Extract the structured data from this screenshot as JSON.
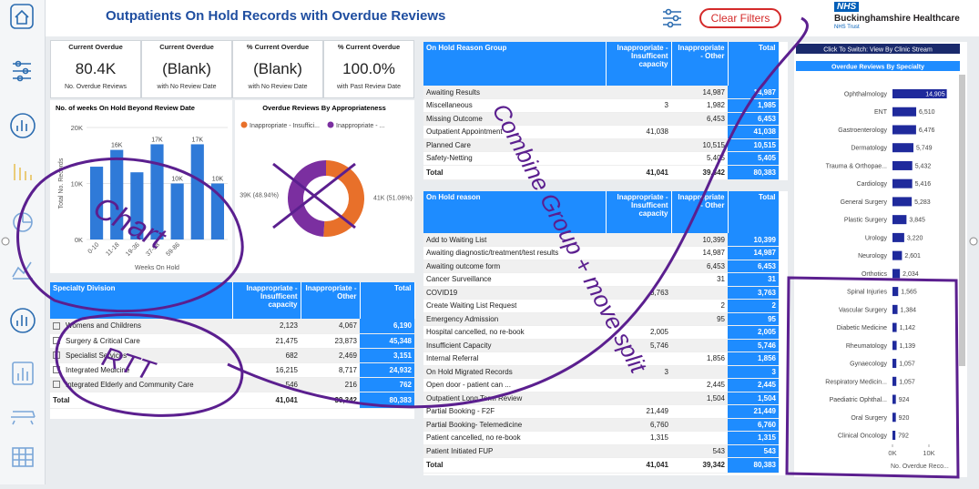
{
  "header": {
    "title": "Outpatients On Hold Records with Overdue Reviews",
    "button": "Clear Filters",
    "logo": {
      "badge": "NHS",
      "name": "Buckinghamshire Healthcare",
      "sub": "NHS Trust"
    }
  },
  "kpis": [
    {
      "title": "Current Overdue",
      "value": "80.4K",
      "caption": "No. Overdue Reviews"
    },
    {
      "title": "Current Overdue",
      "value": "(Blank)",
      "caption": "with No Review Date"
    },
    {
      "title": "% Current Overdue",
      "value": "(Blank)",
      "caption": "with No Review Date"
    },
    {
      "title": "% Current Overdue",
      "value": "100.0%",
      "caption": "with Past Review Date"
    }
  ],
  "chart_data": [
    {
      "type": "bar",
      "title": "No. of weeks On Hold Beyond Review Date",
      "y_label": "Total No. Records",
      "x_label": "Weeks On Hold",
      "categories": [
        "0-10",
        "11-18",
        "19-36",
        "37-58",
        "59-86",
        null,
        null
      ],
      "values": [
        13000,
        16000,
        12000,
        17000,
        10000,
        17000,
        10000
      ],
      "value_labels": [
        null,
        "16K",
        null,
        "17K",
        "10K",
        "17K",
        "10K"
      ],
      "color": "#2f7ad8",
      "ylim": [
        0,
        20000
      ],
      "yticks": [
        {
          "value": 0,
          "label": "0K"
        },
        {
          "value": 10000,
          "label": "10K"
        },
        {
          "value": 20000,
          "label": "20K"
        }
      ]
    },
    {
      "type": "pie",
      "title": "Overdue Reviews By Appropriateness",
      "categories": [
        "Inappropriate - Insuffici...",
        "Inappropriate - ..."
      ],
      "values": [
        41041,
        39342
      ],
      "value_labels": [
        "41K (51.06%)",
        "39K (48.94%)"
      ],
      "colors": [
        "#e8702a",
        "#7b2fa0"
      ]
    },
    {
      "type": "hbar",
      "button": "Click To Switch: View By Clinic Stream",
      "title": "Overdue Reviews By Specialty",
      "x_label": "No. Overdue Reco...",
      "categories": [
        "Ophthalmology",
        "ENT",
        "Gastroenterology",
        "Dermatology",
        "Trauma & Orthopae...",
        "Cardiology",
        "General Surgery",
        "Plastic Surgery",
        "Urology",
        "Neurology",
        "Orthotics",
        "Spinal Injuries",
        "Vascular Surgery",
        "Diabetic Medicine",
        "Rheumatology",
        "Gynaecology",
        "Respiratory Medicin...",
        "Paediatric Ophthal...",
        "Oral Surgery",
        "Clinical Oncology"
      ],
      "values": [
        14905,
        6510,
        6476,
        5749,
        5432,
        5416,
        5283,
        3845,
        3220,
        2601,
        2034,
        1565,
        1384,
        1142,
        1139,
        1057,
        1057,
        924,
        920,
        792
      ],
      "value_labels": [
        "14,905",
        "6,510",
        "6,476",
        "5,749",
        "5,432",
        "5,416",
        "5,283",
        "3,845",
        "3,220",
        "2,601",
        "2,034",
        "1,565",
        "1,384",
        "1,142",
        "1,139",
        "1,057",
        "1,057",
        "924",
        "920",
        "792"
      ],
      "color": "#1f2a9c",
      "xlim": [
        0,
        20000
      ],
      "xticks": [
        {
          "value": 0,
          "label": "0K"
        },
        {
          "value": 10000,
          "label": "10K"
        }
      ]
    }
  ],
  "tables": [
    {
      "headers": [
        "On Hold Reason Group",
        "Inappropriate - Insufficent capacity",
        "Inappropriate - Other",
        "Total"
      ],
      "rows": [
        [
          "Awaiting Results",
          null,
          "14,987",
          "14,987"
        ],
        [
          "Miscellaneous",
          "3",
          "1,982",
          "1,985"
        ],
        [
          "Missing Outcome",
          null,
          "6,453",
          "6,453"
        ],
        [
          "Outpatient Appointment",
          "41,038",
          null,
          "41,038"
        ],
        [
          "Planned Care",
          null,
          "10,515",
          "10,515"
        ],
        [
          "Safety-Netting",
          null,
          "5,405",
          "5,405"
        ]
      ],
      "total": [
        "Total",
        "41,041",
        "39,342",
        "80,383"
      ]
    },
    {
      "headers": [
        "On Hold reason",
        "Inappropriate - Insufficent capacity",
        "Inappropriate - Other",
        "Total"
      ],
      "rows": [
        [
          "Add to Waiting List",
          null,
          "10,399",
          "10,399"
        ],
        [
          "Awaiting diagnostic/treatment/test results",
          null,
          "14,987",
          "14,987"
        ],
        [
          "Awaiting outcome form",
          null,
          "6,453",
          "6,453"
        ],
        [
          "Cancer Surveillance",
          null,
          "31",
          "31"
        ],
        [
          "COVID19",
          "3,763",
          null,
          "3,763"
        ],
        [
          "Create Waiting List Request",
          null,
          "2",
          "2"
        ],
        [
          "Emergency Admission",
          null,
          "95",
          "95"
        ],
        [
          "Hospital cancelled, no re-book",
          "2,005",
          null,
          "2,005"
        ],
        [
          "Insufficient Capacity",
          "5,746",
          null,
          "5,746"
        ],
        [
          "Internal Referral",
          null,
          "1,856",
          "1,856"
        ],
        [
          "On Hold Migrated Records",
          "3",
          null,
          "3"
        ],
        [
          "Open door - patient can ...",
          null,
          "2,445",
          "2,445"
        ],
        [
          "Outpatient Long Term Review",
          null,
          "1,504",
          "1,504"
        ],
        [
          "Partial Booking - F2F",
          "21,449",
          null,
          "21,449"
        ],
        [
          "Partial Booking- Telemedicine",
          "6,760",
          null,
          "6,760"
        ],
        [
          "Patient cancelled, no re-book",
          "1,315",
          null,
          "1,315"
        ],
        [
          "Patient Initiated FUP",
          null,
          "543",
          "543"
        ]
      ],
      "total": [
        "Total",
        "41,041",
        "39,342",
        "80,383"
      ]
    },
    {
      "headers": [
        "Specialty Division",
        "Inappropriate - Insufficent capacity",
        "Inappropriate - Other",
        "Total"
      ],
      "rows": [
        [
          "Womens and Childrens",
          "2,123",
          "4,067",
          "6,190"
        ],
        [
          "Surgery & Critical Care",
          "21,475",
          "23,873",
          "45,348"
        ],
        [
          "Specialist Services",
          "682",
          "2,469",
          "3,151"
        ],
        [
          "Integrated Medicine",
          "16,215",
          "8,717",
          "24,932"
        ],
        [
          "Integrated Elderly and Community Care",
          "546",
          "216",
          "762"
        ]
      ],
      "total": [
        "Total",
        "41,041",
        "39,342",
        "80,383"
      ]
    }
  ],
  "annotations": [
    "Chart",
    "RTT",
    "Combine Group + move split"
  ]
}
